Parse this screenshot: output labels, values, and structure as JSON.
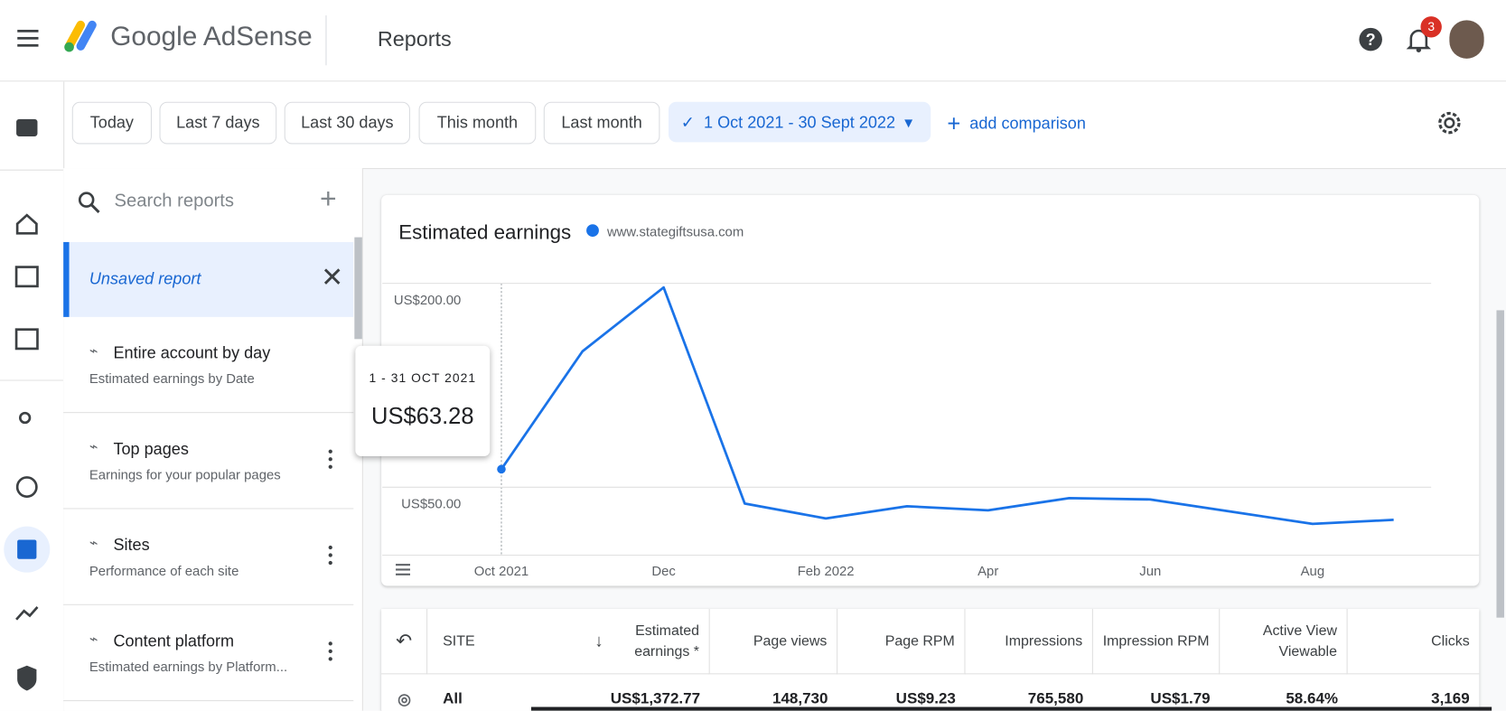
{
  "header": {
    "brand": "Google AdSense",
    "section": "Reports",
    "notification_count": "3"
  },
  "date_filters": [
    "Today",
    "Last 7 days",
    "Last 30 days",
    "This month",
    "Last month"
  ],
  "selected_range": "1 Oct 2021 - 30 Sept 2022",
  "add_comparison": "add comparison",
  "sidebar": {
    "search_placeholder": "Search reports",
    "active_report": "Unsaved report",
    "reports": [
      {
        "title": "Entire account by day",
        "subtitle": "Estimated earnings by Date"
      },
      {
        "title": "Top pages",
        "subtitle": "Earnings for your popular pages"
      },
      {
        "title": "Sites",
        "subtitle": "Performance of each site"
      },
      {
        "title": "Content platform",
        "subtitle": "Estimated earnings by Platform..."
      }
    ]
  },
  "chart_data": {
    "type": "line",
    "title": "Estimated earnings",
    "categories": [
      "Oct 2021",
      null,
      "Dec",
      null,
      "Feb 2022",
      null,
      "Apr",
      null,
      "Jun",
      null,
      "Aug",
      null
    ],
    "series": [
      {
        "name": "www.stategiftsusa.com",
        "color": "#1a73e8",
        "values": [
          63.28,
          150,
          197,
          38,
          27,
          36,
          33,
          42,
          41,
          32,
          23,
          26
        ],
        "value_labels": [
          "US$63.28",
          null,
          null,
          null,
          null,
          null,
          null,
          null,
          null,
          null,
          null,
          null
        ]
      }
    ],
    "tooltip_title": "1 - 31 OCT 2021",
    "ylim": [
      0,
      200
    ],
    "yticks": [
      {
        "value": 50,
        "label": "US$50.00"
      },
      {
        "value": 200,
        "label": "US$200.00"
      }
    ],
    "grid": true
  },
  "table": {
    "columns": [
      "SITE",
      "Estimated earnings *",
      "Page views",
      "Page RPM",
      "Impressions",
      "Impression RPM",
      "Active View Viewable",
      "Clicks"
    ],
    "rows": [
      [
        "All",
        "US$1,372.77",
        "148,730",
        "US$9.23",
        "765,580",
        "US$1.79",
        "58.64%",
        "3,169"
      ]
    ]
  }
}
